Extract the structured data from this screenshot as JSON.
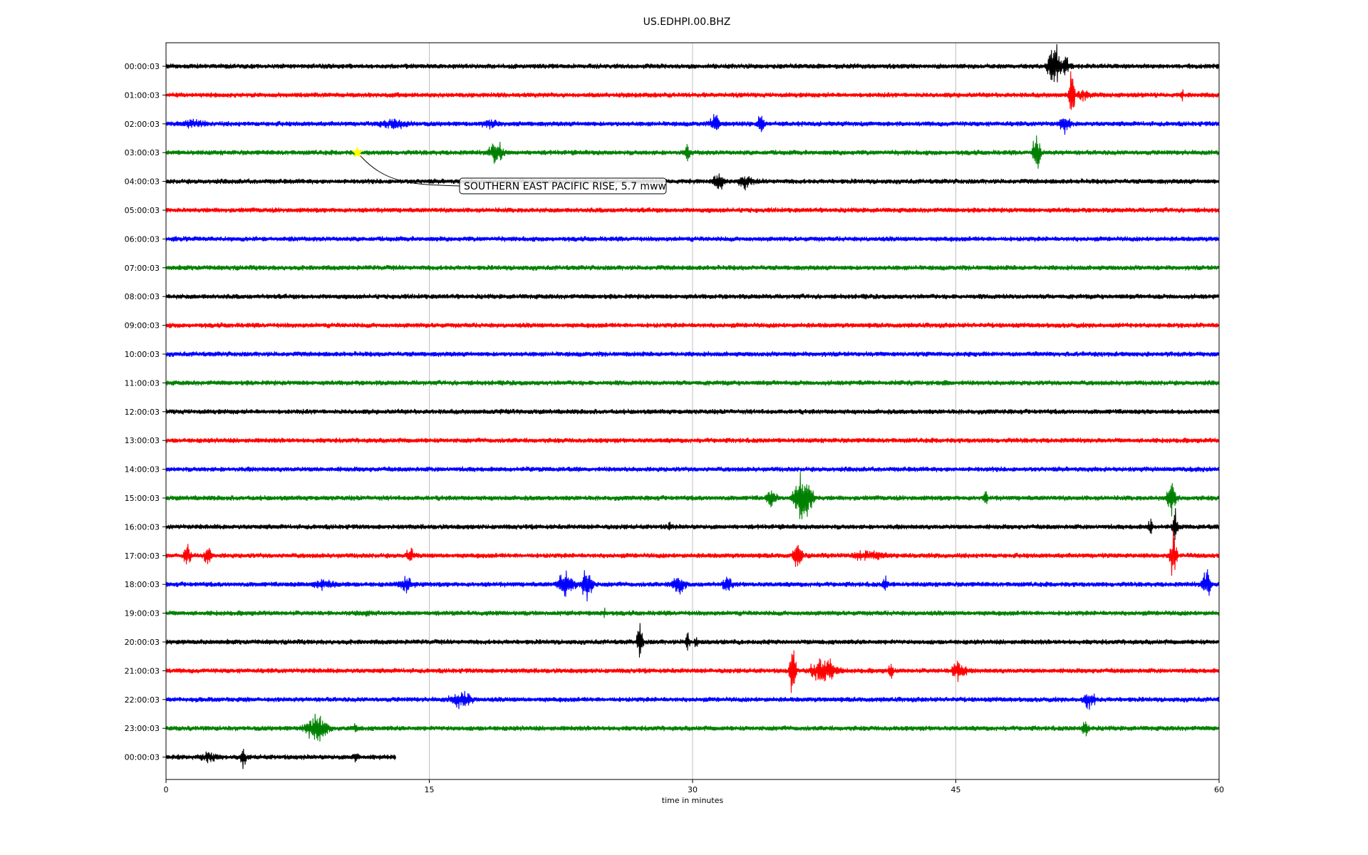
{
  "chart_data": {
    "type": "line",
    "title": "US.EDHPI.00.BHZ",
    "xlabel": "time in minutes",
    "xlim": [
      0,
      60
    ],
    "x_ticks": [
      "0",
      "15",
      "30",
      "45",
      "60"
    ],
    "grid": "vertical",
    "row_colors": [
      "#000000",
      "#ff0000",
      "#0000ff",
      "#008000"
    ],
    "rows": [
      {
        "label": "00:00:03",
        "end_min": 60,
        "bursts": [
          {
            "t": 50.6,
            "amp": 2.6,
            "dur": 1.0
          },
          {
            "t": 51.3,
            "amp": 1.1,
            "dur": 0.8
          }
        ]
      },
      {
        "label": "01:00:03",
        "end_min": 60,
        "bursts": [
          {
            "t": 51.6,
            "amp": 3.0,
            "dur": 0.4
          },
          {
            "t": 52.3,
            "amp": 0.6,
            "dur": 1.8
          },
          {
            "t": 57.9,
            "amp": 0.6,
            "dur": 0.3
          }
        ]
      },
      {
        "label": "02:00:03",
        "end_min": 60,
        "bursts": [
          {
            "t": 1.5,
            "amp": 0.5,
            "dur": 3.0
          },
          {
            "t": 13.0,
            "amp": 0.6,
            "dur": 3.5
          },
          {
            "t": 18.5,
            "amp": 0.5,
            "dur": 2.5
          },
          {
            "t": 31.3,
            "amp": 1.2,
            "dur": 0.8
          },
          {
            "t": 33.9,
            "amp": 1.5,
            "dur": 0.5
          },
          {
            "t": 51.2,
            "amp": 0.9,
            "dur": 1.0
          }
        ]
      },
      {
        "label": "03:00:03",
        "end_min": 60,
        "bursts": [
          {
            "t": 18.8,
            "amp": 1.4,
            "dur": 1.2
          },
          {
            "t": 29.7,
            "amp": 0.8,
            "dur": 0.6
          },
          {
            "t": 49.6,
            "amp": 2.2,
            "dur": 0.6
          }
        ]
      },
      {
        "label": "04:00:03",
        "end_min": 60,
        "bursts": [
          {
            "t": 31.5,
            "amp": 1.0,
            "dur": 1.0
          },
          {
            "t": 33.0,
            "amp": 0.8,
            "dur": 1.5
          }
        ]
      },
      {
        "label": "05:00:03",
        "end_min": 60,
        "bursts": []
      },
      {
        "label": "06:00:03",
        "end_min": 60,
        "bursts": []
      },
      {
        "label": "07:00:03",
        "end_min": 60,
        "bursts": []
      },
      {
        "label": "08:00:03",
        "end_min": 60,
        "bursts": []
      },
      {
        "label": "09:00:03",
        "end_min": 60,
        "bursts": []
      },
      {
        "label": "10:00:03",
        "end_min": 60,
        "bursts": []
      },
      {
        "label": "11:00:03",
        "end_min": 60,
        "bursts": [
          {
            "t": 44.6,
            "amp": 0.4,
            "dur": 0.5
          }
        ]
      },
      {
        "label": "12:00:03",
        "end_min": 60,
        "bursts": []
      },
      {
        "label": "13:00:03",
        "end_min": 60,
        "bursts": []
      },
      {
        "label": "14:00:03",
        "end_min": 60,
        "bursts": []
      },
      {
        "label": "15:00:03",
        "end_min": 60,
        "bursts": [
          {
            "t": 34.5,
            "amp": 1.0,
            "dur": 1.0
          },
          {
            "t": 36.3,
            "amp": 2.8,
            "dur": 1.5
          },
          {
            "t": 46.7,
            "amp": 0.7,
            "dur": 0.5
          },
          {
            "t": 57.3,
            "amp": 1.8,
            "dur": 0.8
          }
        ]
      },
      {
        "label": "16:00:03",
        "end_min": 60,
        "bursts": [
          {
            "t": 28.7,
            "amp": 0.6,
            "dur": 0.4
          },
          {
            "t": 56.1,
            "amp": 1.0,
            "dur": 0.4
          },
          {
            "t": 57.5,
            "amp": 1.8,
            "dur": 0.4
          }
        ]
      },
      {
        "label": "17:00:03",
        "end_min": 60,
        "bursts": [
          {
            "t": 1.2,
            "amp": 1.2,
            "dur": 0.6
          },
          {
            "t": 2.4,
            "amp": 1.3,
            "dur": 0.6
          },
          {
            "t": 13.9,
            "amp": 1.0,
            "dur": 0.6
          },
          {
            "t": 36.0,
            "amp": 1.4,
            "dur": 0.8
          },
          {
            "t": 40.0,
            "amp": 0.6,
            "dur": 4.0
          },
          {
            "t": 57.4,
            "amp": 2.6,
            "dur": 0.5
          }
        ]
      },
      {
        "label": "18:00:03",
        "end_min": 60,
        "bursts": [
          {
            "t": 9.0,
            "amp": 0.6,
            "dur": 3.0
          },
          {
            "t": 13.7,
            "amp": 0.8,
            "dur": 1.8
          },
          {
            "t": 22.8,
            "amp": 1.4,
            "dur": 1.5
          },
          {
            "t": 24.0,
            "amp": 1.8,
            "dur": 1.0
          },
          {
            "t": 29.2,
            "amp": 1.2,
            "dur": 1.2
          },
          {
            "t": 32.0,
            "amp": 0.9,
            "dur": 1.0
          },
          {
            "t": 41.0,
            "amp": 0.9,
            "dur": 0.5
          },
          {
            "t": 59.3,
            "amp": 1.8,
            "dur": 0.7
          }
        ]
      },
      {
        "label": "19:00:03",
        "end_min": 60,
        "bursts": [
          {
            "t": 11.5,
            "amp": 0.4,
            "dur": 1.0
          },
          {
            "t": 25.0,
            "amp": 0.5,
            "dur": 0.8
          }
        ]
      },
      {
        "label": "20:00:03",
        "end_min": 60,
        "bursts": [
          {
            "t": 27.0,
            "amp": 2.0,
            "dur": 0.5
          },
          {
            "t": 29.7,
            "amp": 1.4,
            "dur": 0.3
          },
          {
            "t": 30.2,
            "amp": 0.6,
            "dur": 0.4
          }
        ]
      },
      {
        "label": "21:00:03",
        "end_min": 60,
        "bursts": [
          {
            "t": 35.7,
            "amp": 2.5,
            "dur": 0.5
          },
          {
            "t": 37.5,
            "amp": 1.4,
            "dur": 2.5
          },
          {
            "t": 41.3,
            "amp": 0.9,
            "dur": 0.4
          },
          {
            "t": 45.2,
            "amp": 1.3,
            "dur": 1.2
          }
        ]
      },
      {
        "label": "22:00:03",
        "end_min": 60,
        "bursts": [
          {
            "t": 16.8,
            "amp": 1.0,
            "dur": 2.0
          },
          {
            "t": 52.6,
            "amp": 1.0,
            "dur": 1.2
          }
        ]
      },
      {
        "label": "23:00:03",
        "end_min": 60,
        "bursts": [
          {
            "t": 8.6,
            "amp": 1.4,
            "dur": 2.2
          },
          {
            "t": 10.8,
            "amp": 0.7,
            "dur": 0.3
          },
          {
            "t": 52.4,
            "amp": 1.0,
            "dur": 0.6
          }
        ]
      },
      {
        "label": "00:00:03",
        "end_min": 13.1,
        "bursts": [
          {
            "t": 2.5,
            "amp": 0.6,
            "dur": 2.0
          },
          {
            "t": 4.4,
            "amp": 1.2,
            "dur": 0.4
          },
          {
            "t": 10.8,
            "amp": 0.8,
            "dur": 0.6
          }
        ]
      }
    ],
    "event": {
      "label": "SOUTHERN EAST PACIFIC RISE, 5.7 mww",
      "marker": "star",
      "marker_color": "#ffff00",
      "row": 3,
      "t_min": 10.9
    }
  }
}
